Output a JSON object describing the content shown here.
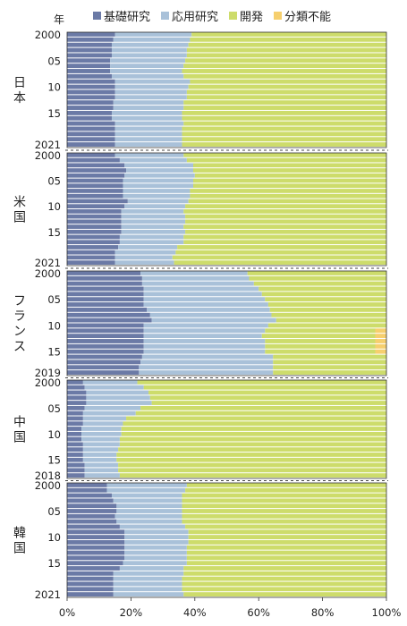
{
  "year_unit": "年",
  "legend": {
    "basic": "基礎研究",
    "applied": "応用研究",
    "development": "開発",
    "unclassified": "分類不能"
  },
  "colors": {
    "basic": "#6b7aa6",
    "applied": "#a9c1d9",
    "development": "#cddc6b",
    "unclassified": "#f6cf6e",
    "separator": "#ffffff",
    "axis": "#333333"
  },
  "chart_data": {
    "type": "bar",
    "orientation": "horizontal",
    "stacked": true,
    "normalized": true,
    "series_names": [
      "基礎研究",
      "応用研究",
      "開発",
      "分類不能"
    ],
    "xlim": [
      0,
      100
    ],
    "x_ticks": [
      "0%",
      "20%",
      "40%",
      "60%",
      "80%",
      "100%"
    ],
    "panels": [
      {
        "country": "日本",
        "years": [
          "2000",
          "2001",
          "2002",
          "2003",
          "2004",
          "2005",
          "2006",
          "2007",
          "2008",
          "2009",
          "2010",
          "2011",
          "2012",
          "2013",
          "2014",
          "2015",
          "2016",
          "2017",
          "2018",
          "2019",
          "2020",
          "2021"
        ],
        "year_labels": {
          "0": "2000",
          "5": "05",
          "10": "10",
          "15": "15",
          "21": "2021"
        },
        "basic": [
          15,
          14.5,
          14,
          14,
          14,
          13.5,
          13.5,
          13.5,
          14,
          15,
          15,
          15,
          15,
          14.5,
          14.5,
          14,
          14,
          15,
          15,
          15,
          15,
          15
        ],
        "applied": [
          24,
          24,
          24,
          23.5,
          23.5,
          23.5,
          23,
          22.5,
          22.5,
          23.5,
          23,
          22.5,
          22.5,
          22,
          22,
          22,
          22,
          21.5,
          21,
          21,
          21,
          21
        ],
        "unclassified": [
          0,
          0,
          0,
          0,
          0,
          0,
          0,
          0,
          0,
          0,
          0,
          0,
          0,
          0,
          0,
          0,
          0,
          0,
          0,
          0,
          0,
          0
        ]
      },
      {
        "country": "米国",
        "years": [
          "2000",
          "2001",
          "2002",
          "2003",
          "2004",
          "2005",
          "2006",
          "2007",
          "2008",
          "2009",
          "2010",
          "2011",
          "2012",
          "2013",
          "2014",
          "2015",
          "2016",
          "2017",
          "2018",
          "2019",
          "2020",
          "2021"
        ],
        "year_labels": {
          "0": "2000",
          "5": "05",
          "10": "10",
          "15": "15",
          "21": "2021"
        },
        "basic": [
          15,
          16.5,
          18,
          18.5,
          18,
          17.5,
          17.5,
          17.5,
          17.5,
          19,
          18,
          17,
          17,
          17,
          17,
          17,
          16.5,
          16.5,
          16,
          15,
          15,
          15
        ],
        "applied": [
          21.5,
          21,
          21.5,
          21,
          22,
          22,
          22,
          21,
          21,
          19,
          19,
          19.5,
          20,
          20,
          19.5,
          20,
          20,
          20,
          18.5,
          19,
          18,
          18.5
        ],
        "unclassified": [
          0,
          0,
          0,
          0,
          0,
          0,
          0,
          0,
          0,
          0,
          0,
          0,
          0,
          0,
          0,
          0,
          0,
          0,
          0,
          0,
          0,
          0
        ]
      },
      {
        "country": "フランス",
        "years": [
          "2000",
          "2001",
          "2002",
          "2003",
          "2004",
          "2005",
          "2006",
          "2007",
          "2008",
          "2009",
          "2010",
          "2011",
          "2012",
          "2013",
          "2014",
          "2015",
          "2016",
          "2017",
          "2018",
          "2019"
        ],
        "year_labels": {
          "0": "2000",
          "5": "05",
          "10": "10",
          "15": "15",
          "19": "2019"
        },
        "basic": [
          23,
          23.5,
          23.5,
          24,
          24,
          24,
          24,
          25,
          26,
          26.5,
          24,
          24,
          24,
          24,
          24,
          24,
          23.5,
          23,
          22.5,
          22.5
        ],
        "applied": [
          33.5,
          33.5,
          35,
          36,
          37,
          38,
          39,
          38.5,
          38,
          39,
          39,
          38,
          37,
          38,
          38,
          38,
          41,
          41.5,
          42,
          42
        ],
        "unclassified": [
          0,
          0,
          0,
          0,
          0,
          0,
          0,
          0,
          0,
          0,
          0,
          3.5,
          3.5,
          3.5,
          3.5,
          3.5,
          0,
          0,
          0,
          0
        ]
      },
      {
        "country": "中国",
        "years": [
          "2000",
          "2001",
          "2002",
          "2003",
          "2004",
          "2005",
          "2006",
          "2007",
          "2008",
          "2009",
          "2010",
          "2011",
          "2012",
          "2013",
          "2014",
          "2015",
          "2016",
          "2017",
          "2018"
        ],
        "year_labels": {
          "0": "2000",
          "5": "05",
          "10": "10",
          "15": "15",
          "18": "2018"
        },
        "basic": [
          5,
          5.5,
          6,
          6,
          6,
          5.5,
          5,
          5,
          5,
          4.5,
          4.5,
          4.5,
          5,
          5,
          5,
          5,
          5.5,
          5.5,
          5.5
        ],
        "applied": [
          17,
          18.5,
          19.5,
          20,
          20.5,
          17.5,
          16.5,
          13.5,
          12.5,
          12.5,
          12.5,
          12,
          11.5,
          11,
          10.5,
          10.5,
          10.5,
          10.5,
          11
        ],
        "unclassified": [
          0,
          0,
          0,
          0,
          0,
          0,
          0,
          0,
          0,
          0,
          0,
          0,
          0,
          0,
          0,
          0,
          0,
          0,
          0
        ]
      },
      {
        "country": "韓国",
        "years": [
          "2000",
          "2001",
          "2002",
          "2003",
          "2004",
          "2005",
          "2006",
          "2007",
          "2008",
          "2009",
          "2010",
          "2011",
          "2012",
          "2013",
          "2014",
          "2015",
          "2016",
          "2017",
          "2018",
          "2019",
          "2020",
          "2021"
        ],
        "year_labels": {
          "0": "2000",
          "5": "05",
          "10": "10",
          "15": "15",
          "21": "2021"
        },
        "basic": [
          12.5,
          12.5,
          14,
          14.5,
          15.5,
          15.5,
          15,
          15.5,
          16.5,
          18,
          18,
          18,
          18,
          18,
          18,
          17.5,
          16.5,
          14.5,
          14.5,
          14.5,
          14.5,
          14.5
        ],
        "applied": [
          25,
          24.5,
          22,
          21.5,
          20.5,
          20.5,
          21,
          20.5,
          20.5,
          20,
          20,
          20,
          19.5,
          19.5,
          19.5,
          20,
          20,
          22,
          21.5,
          21.5,
          21.5,
          22
        ],
        "unclassified": [
          0,
          0,
          0,
          0,
          0,
          0,
          0,
          0,
          0,
          0,
          0,
          0,
          0,
          0,
          0,
          0,
          0,
          0,
          0,
          0,
          0,
          0
        ]
      }
    ]
  }
}
